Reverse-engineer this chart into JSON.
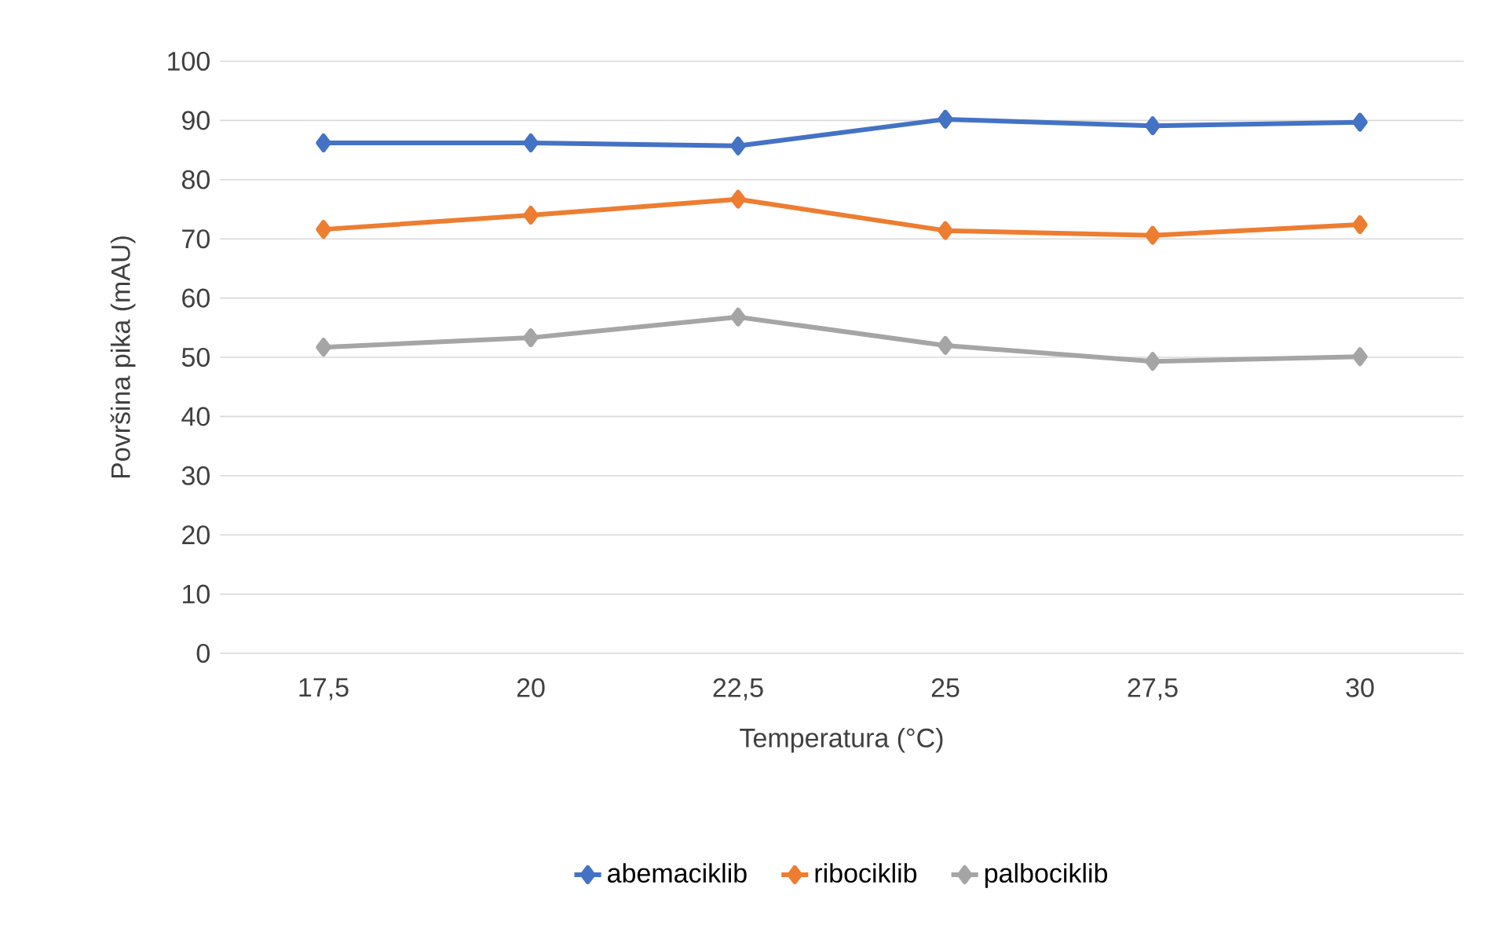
{
  "chart_data": {
    "type": "line",
    "xlabel": "Temperatura (°C)",
    "ylabel": "Površina pika (mAU)",
    "categories": [
      "17,5",
      "20",
      "22,5",
      "25",
      "27,5",
      "30"
    ],
    "series": [
      {
        "name": "abemaciklib",
        "color": "#4472c4",
        "values": [
          86.2,
          86.2,
          85.7,
          90.2,
          89.1,
          89.7
        ]
      },
      {
        "name": "ribociklib",
        "color": "#ed7d31",
        "values": [
          71.6,
          74.0,
          76.7,
          71.4,
          70.6,
          72.4
        ]
      },
      {
        "name": "palbociklib",
        "color": "#a5a5a5",
        "values": [
          51.7,
          53.3,
          56.8,
          52.0,
          49.3,
          50.1
        ]
      }
    ],
    "ylim": [
      0,
      100
    ],
    "yticks": [
      0,
      10,
      20,
      30,
      40,
      50,
      60,
      70,
      80,
      90,
      100
    ],
    "grid": "y",
    "legend": "bottom",
    "marker": "diamond",
    "line_style": "solid"
  }
}
